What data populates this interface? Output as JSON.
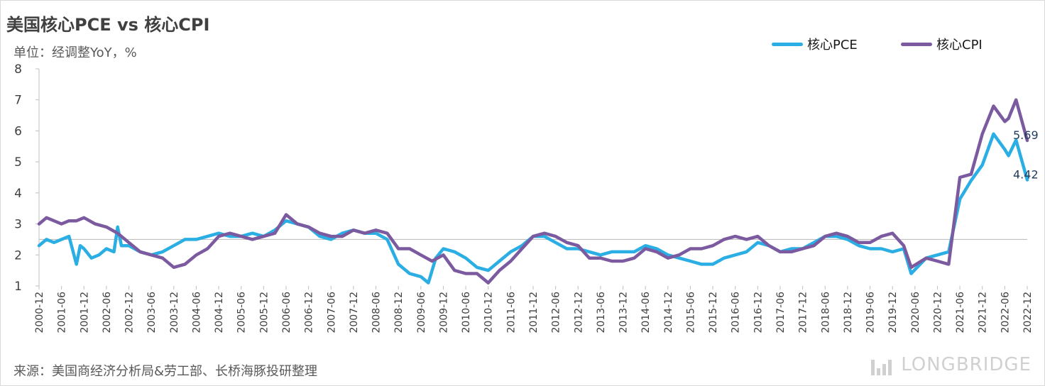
{
  "header": {
    "title": "美国核心PCE vs 核心CPI",
    "unit": "单位：经调整YoY，%"
  },
  "legend": {
    "pce_label": "核心PCE",
    "cpi_label": "核心CPI"
  },
  "footer": {
    "source": "来源：美国商经济分析局&劳工部、长桥海豚投研整理",
    "brand": "LONGBRIDGE"
  },
  "colors": {
    "pce": "#2aaee3",
    "cpi": "#7b5aa0",
    "axis": "#bfbfbf",
    "text": "#404040"
  },
  "chart_data": {
    "type": "line",
    "ylim": [
      1,
      8
    ],
    "y_ticks": [
      1,
      2,
      3,
      4,
      5,
      6,
      7,
      8
    ],
    "reference_line": 2.5,
    "x_tick_labels": [
      "2000-12",
      "2001-06",
      "2001-12",
      "2002-06",
      "2002-12",
      "2003-06",
      "2003-12",
      "2004-06",
      "2004-12",
      "2005-06",
      "2005-12",
      "2006-06",
      "2006-12",
      "2007-06",
      "2007-12",
      "2008-06",
      "2008-12",
      "2009-06",
      "2009-12",
      "2010-06",
      "2010-12",
      "2011-06",
      "2011-12",
      "2012-06",
      "2012-12",
      "2013-06",
      "2013-12",
      "2014-06",
      "2014-12",
      "2015-06",
      "2015-12",
      "2016-06",
      "2016-12",
      "2017-06",
      "2017-12",
      "2018-06",
      "2018-12",
      "2019-06",
      "2019-12",
      "2020-06",
      "2020-12",
      "2021-06",
      "2021-12",
      "2022-06",
      "2022-12"
    ],
    "series": [
      {
        "name": "核心PCE",
        "end_label": "4.42",
        "points": [
          [
            "2000-12",
            2.3
          ],
          [
            "2001-02",
            2.5
          ],
          [
            "2001-04",
            2.4
          ],
          [
            "2001-06",
            2.5
          ],
          [
            "2001-08",
            2.6
          ],
          [
            "2001-10",
            1.7
          ],
          [
            "2001-11",
            2.3
          ],
          [
            "2001-12",
            2.2
          ],
          [
            "2002-02",
            1.9
          ],
          [
            "2002-04",
            2.0
          ],
          [
            "2002-06",
            2.2
          ],
          [
            "2002-08",
            2.1
          ],
          [
            "2002-09",
            2.9
          ],
          [
            "2002-10",
            2.3
          ],
          [
            "2002-12",
            2.3
          ],
          [
            "2003-03",
            2.1
          ],
          [
            "2003-06",
            2.0
          ],
          [
            "2003-09",
            2.1
          ],
          [
            "2003-12",
            2.3
          ],
          [
            "2004-03",
            2.5
          ],
          [
            "2004-06",
            2.5
          ],
          [
            "2004-09",
            2.6
          ],
          [
            "2004-12",
            2.7
          ],
          [
            "2005-03",
            2.6
          ],
          [
            "2005-06",
            2.6
          ],
          [
            "2005-09",
            2.7
          ],
          [
            "2005-12",
            2.6
          ],
          [
            "2006-03",
            2.8
          ],
          [
            "2006-06",
            3.1
          ],
          [
            "2006-09",
            3.0
          ],
          [
            "2006-12",
            2.9
          ],
          [
            "2007-03",
            2.6
          ],
          [
            "2007-06",
            2.5
          ],
          [
            "2007-09",
            2.7
          ],
          [
            "2007-12",
            2.8
          ],
          [
            "2008-03",
            2.7
          ],
          [
            "2008-06",
            2.7
          ],
          [
            "2008-09",
            2.5
          ],
          [
            "2008-12",
            1.7
          ],
          [
            "2009-03",
            1.4
          ],
          [
            "2009-06",
            1.3
          ],
          [
            "2009-08",
            1.1
          ],
          [
            "2009-10",
            1.9
          ],
          [
            "2009-12",
            2.2
          ],
          [
            "2010-03",
            2.1
          ],
          [
            "2010-06",
            1.9
          ],
          [
            "2010-09",
            1.6
          ],
          [
            "2010-12",
            1.5
          ],
          [
            "2011-03",
            1.8
          ],
          [
            "2011-06",
            2.1
          ],
          [
            "2011-09",
            2.3
          ],
          [
            "2011-12",
            2.6
          ],
          [
            "2012-03",
            2.6
          ],
          [
            "2012-06",
            2.4
          ],
          [
            "2012-09",
            2.2
          ],
          [
            "2012-12",
            2.2
          ],
          [
            "2013-03",
            2.1
          ],
          [
            "2013-06",
            2.0
          ],
          [
            "2013-09",
            2.1
          ],
          [
            "2013-12",
            2.1
          ],
          [
            "2014-03",
            2.1
          ],
          [
            "2014-06",
            2.3
          ],
          [
            "2014-09",
            2.2
          ],
          [
            "2014-12",
            2.0
          ],
          [
            "2015-03",
            1.9
          ],
          [
            "2015-06",
            1.8
          ],
          [
            "2015-09",
            1.7
          ],
          [
            "2015-12",
            1.7
          ],
          [
            "2016-03",
            1.9
          ],
          [
            "2016-06",
            2.0
          ],
          [
            "2016-09",
            2.1
          ],
          [
            "2016-12",
            2.4
          ],
          [
            "2017-03",
            2.3
          ],
          [
            "2017-06",
            2.1
          ],
          [
            "2017-09",
            2.2
          ],
          [
            "2017-12",
            2.2
          ],
          [
            "2018-03",
            2.4
          ],
          [
            "2018-06",
            2.6
          ],
          [
            "2018-09",
            2.6
          ],
          [
            "2018-12",
            2.5
          ],
          [
            "2019-03",
            2.3
          ],
          [
            "2019-06",
            2.2
          ],
          [
            "2019-09",
            2.2
          ],
          [
            "2019-12",
            2.1
          ],
          [
            "2020-03",
            2.2
          ],
          [
            "2020-05",
            1.4
          ],
          [
            "2020-09",
            1.9
          ],
          [
            "2020-12",
            2.0
          ],
          [
            "2021-03",
            2.1
          ],
          [
            "2021-06",
            3.8
          ],
          [
            "2021-09",
            4.4
          ],
          [
            "2021-12",
            4.9
          ],
          [
            "2022-03",
            5.9
          ],
          [
            "2022-06",
            5.4
          ],
          [
            "2022-07",
            5.2
          ],
          [
            "2022-09",
            5.7
          ],
          [
            "2022-12",
            4.42
          ]
        ]
      },
      {
        "name": "核心CPI",
        "end_label": "5.69",
        "points": [
          [
            "2000-12",
            3.0
          ],
          [
            "2001-02",
            3.2
          ],
          [
            "2001-04",
            3.1
          ],
          [
            "2001-06",
            3.0
          ],
          [
            "2001-08",
            3.1
          ],
          [
            "2001-10",
            3.1
          ],
          [
            "2001-12",
            3.2
          ],
          [
            "2002-03",
            3.0
          ],
          [
            "2002-06",
            2.9
          ],
          [
            "2002-09",
            2.7
          ],
          [
            "2002-12",
            2.4
          ],
          [
            "2003-03",
            2.1
          ],
          [
            "2003-06",
            2.0
          ],
          [
            "2003-09",
            1.9
          ],
          [
            "2003-12",
            1.6
          ],
          [
            "2004-03",
            1.7
          ],
          [
            "2004-06",
            2.0
          ],
          [
            "2004-09",
            2.2
          ],
          [
            "2004-12",
            2.6
          ],
          [
            "2005-03",
            2.7
          ],
          [
            "2005-06",
            2.6
          ],
          [
            "2005-09",
            2.5
          ],
          [
            "2005-12",
            2.6
          ],
          [
            "2006-03",
            2.7
          ],
          [
            "2006-06",
            3.3
          ],
          [
            "2006-09",
            3.0
          ],
          [
            "2006-12",
            2.9
          ],
          [
            "2007-03",
            2.7
          ],
          [
            "2007-06",
            2.6
          ],
          [
            "2007-09",
            2.6
          ],
          [
            "2007-12",
            2.8
          ],
          [
            "2008-03",
            2.7
          ],
          [
            "2008-06",
            2.8
          ],
          [
            "2008-09",
            2.7
          ],
          [
            "2008-12",
            2.2
          ],
          [
            "2009-03",
            2.2
          ],
          [
            "2009-06",
            2.0
          ],
          [
            "2009-09",
            1.8
          ],
          [
            "2009-12",
            2.0
          ],
          [
            "2010-03",
            1.5
          ],
          [
            "2010-06",
            1.4
          ],
          [
            "2010-09",
            1.4
          ],
          [
            "2010-12",
            1.1
          ],
          [
            "2011-03",
            1.5
          ],
          [
            "2011-06",
            1.8
          ],
          [
            "2011-09",
            2.2
          ],
          [
            "2011-12",
            2.6
          ],
          [
            "2012-03",
            2.7
          ],
          [
            "2012-06",
            2.6
          ],
          [
            "2012-09",
            2.4
          ],
          [
            "2012-12",
            2.3
          ],
          [
            "2013-03",
            1.9
          ],
          [
            "2013-06",
            1.9
          ],
          [
            "2013-09",
            1.8
          ],
          [
            "2013-12",
            1.8
          ],
          [
            "2014-03",
            1.9
          ],
          [
            "2014-06",
            2.2
          ],
          [
            "2014-09",
            2.1
          ],
          [
            "2014-12",
            1.9
          ],
          [
            "2015-03",
            2.0
          ],
          [
            "2015-06",
            2.2
          ],
          [
            "2015-09",
            2.2
          ],
          [
            "2015-12",
            2.3
          ],
          [
            "2016-03",
            2.5
          ],
          [
            "2016-06",
            2.6
          ],
          [
            "2016-09",
            2.5
          ],
          [
            "2016-12",
            2.6
          ],
          [
            "2017-03",
            2.3
          ],
          [
            "2017-06",
            2.1
          ],
          [
            "2017-09",
            2.1
          ],
          [
            "2017-12",
            2.2
          ],
          [
            "2018-03",
            2.3
          ],
          [
            "2018-06",
            2.6
          ],
          [
            "2018-09",
            2.7
          ],
          [
            "2018-12",
            2.6
          ],
          [
            "2019-03",
            2.4
          ],
          [
            "2019-06",
            2.4
          ],
          [
            "2019-09",
            2.6
          ],
          [
            "2019-12",
            2.7
          ],
          [
            "2020-03",
            2.3
          ],
          [
            "2020-05",
            1.6
          ],
          [
            "2020-09",
            1.9
          ],
          [
            "2020-12",
            1.8
          ],
          [
            "2021-03",
            1.7
          ],
          [
            "2021-06",
            4.5
          ],
          [
            "2021-09",
            4.6
          ],
          [
            "2021-12",
            5.9
          ],
          [
            "2022-03",
            6.8
          ],
          [
            "2022-06",
            6.3
          ],
          [
            "2022-07",
            6.4
          ],
          [
            "2022-09",
            7.0
          ],
          [
            "2022-12",
            5.69
          ]
        ]
      }
    ]
  }
}
